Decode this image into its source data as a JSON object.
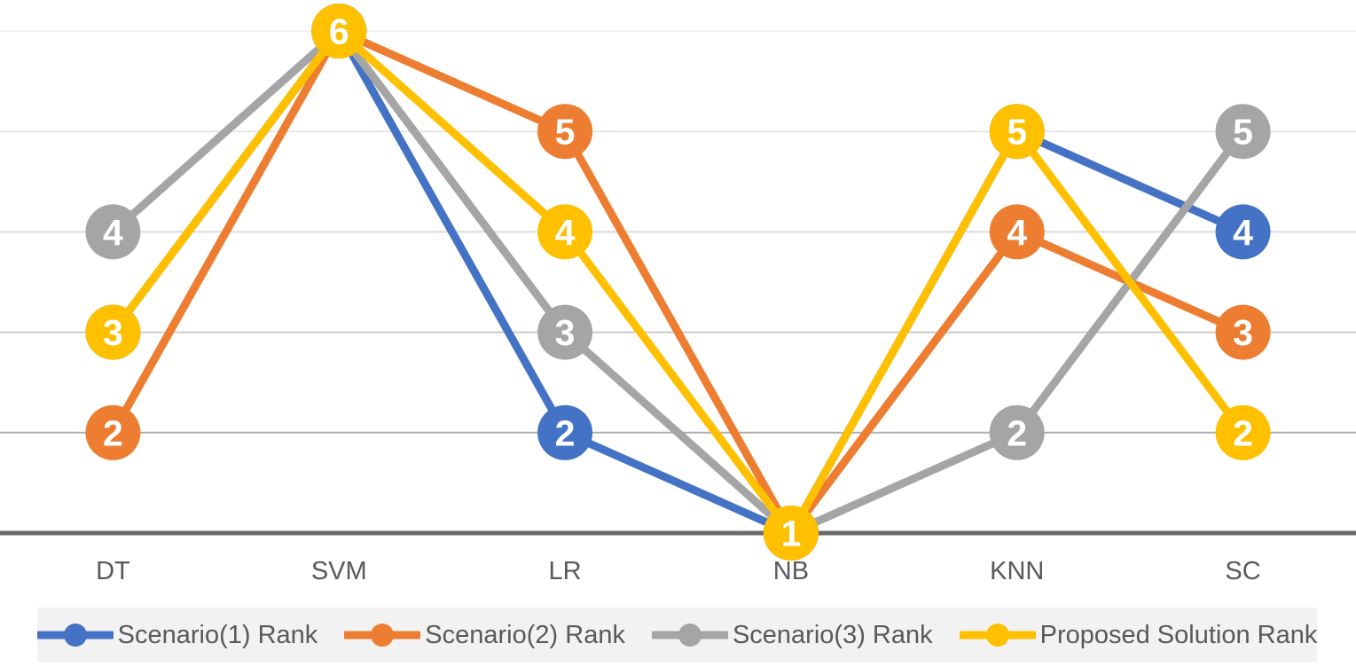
{
  "chart_data": {
    "type": "line",
    "title": "",
    "xlabel": "",
    "ylabel": "",
    "categories": [
      "DT",
      "SVM",
      "LR",
      "NB",
      "KNN",
      "SC"
    ],
    "series": [
      {
        "name": "Scenario(1) Rank",
        "color": "#4472C4",
        "values": [
          3,
          6,
          2,
          1,
          5,
          4
        ]
      },
      {
        "name": "Scenario(2) Rank",
        "color": "#ED7D31",
        "values": [
          2,
          6,
          5,
          1,
          4,
          3
        ]
      },
      {
        "name": "Scenario(3) Rank",
        "color": "#A5A5A5",
        "values": [
          4,
          6,
          3,
          1,
          2,
          5
        ]
      },
      {
        "name": "Proposed Solution Rank",
        "color": "#FFC000",
        "values": [
          3,
          6,
          4,
          1,
          5,
          2
        ]
      }
    ],
    "ylim": [
      1,
      6
    ],
    "y_unit": 1,
    "grid": "horizontal",
    "gridline_labels_shown": false,
    "data_labels": "on, centered in markers, white bold",
    "legend_position": "bottom"
  },
  "style": {
    "background": "#FFFFFF",
    "axis_line_color": "#6B6B6B",
    "gridline_colors_rank6_to_rank2": [
      "#F2F2F2",
      "#E7E7E7",
      "#DADADA",
      "#CBCBCB",
      "#AFAFAF"
    ],
    "category_label_color": "#595959",
    "marker_label_color": "#FFFFFF",
    "legend_background": "#F2F2F2",
    "legend_text_color": "#595959"
  }
}
